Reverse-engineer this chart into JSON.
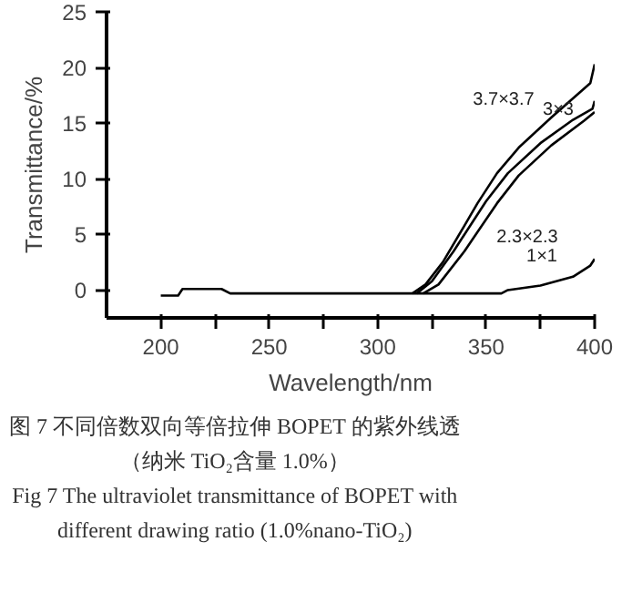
{
  "chart_data": {
    "type": "line",
    "xlabel": "Wavelength/nm",
    "ylabel": "Transmittance/%",
    "xlim": [
      175,
      400
    ],
    "ylim": [
      -2.5,
      25
    ],
    "xticks": [
      200,
      {
        "value": 225,
        "label": null
      },
      250,
      {
        "value": 275,
        "label": null
      },
      300,
      {
        "value": 325,
        "label": null
      },
      350,
      {
        "value": 375,
        "label": null
      },
      400
    ],
    "yticks": [
      0,
      5,
      10,
      15,
      20,
      25
    ],
    "grid": false,
    "marker": "none",
    "line_style": "solid",
    "series": [
      {
        "name": "3.7×3.7",
        "color": "#000000",
        "x": [
          316,
          322,
          330,
          340,
          346,
          355,
          365,
          380,
          398,
          400
        ],
        "values": [
          -0.3,
          0.5,
          2.5,
          5.8,
          7.8,
          10.5,
          12.8,
          15.5,
          18.6,
          20.3
        ]
      },
      {
        "name": "3×3",
        "color": "#000000",
        "x": [
          318,
          325,
          335,
          350,
          360,
          375,
          390,
          399,
          400
        ],
        "values": [
          -0.3,
          0.8,
          3.5,
          8,
          10.5,
          13.2,
          15.3,
          16.3,
          17
        ]
      },
      {
        "name": "2.3×2.3",
        "color": "#000000",
        "x": [
          321,
          328,
          340,
          355,
          365,
          380,
          395,
          400
        ],
        "values": [
          -0.3,
          0.5,
          3.5,
          7.8,
          10.3,
          13,
          15.2,
          16
        ]
      },
      {
        "name": "1×1",
        "color": "#000000",
        "x": [
          200,
          208,
          210,
          228,
          232,
          300,
          357,
          360,
          375,
          390,
          398,
          400
        ],
        "values": [
          -0.5,
          -0.5,
          0.1,
          0.1,
          -0.3,
          -0.3,
          -0.3,
          0,
          0.4,
          1.2,
          2.2,
          2.8
        ]
      }
    ],
    "annotations": [
      "图 7  不同倍数双向等倍拉伸 BOPET 的紫外线透",
      "（纳米 TiO₂含量 1.0%）",
      "Fig 7 The ultraviolet transmittance of BOPET with",
      "different drawing ratio (1.0%nano-TiO₂)"
    ]
  }
}
